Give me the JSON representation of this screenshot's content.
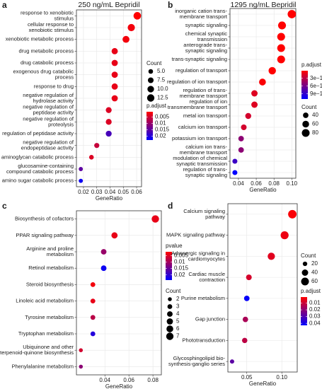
{
  "chart_data": [
    {
      "type": "dot",
      "panel": "a",
      "title": "250 ng/mL Bepridil",
      "x_label": "GeneRatio",
      "categories": [
        "response to xenobiotic\nstimulus",
        "cellular response to\nxenobiotic stimulus",
        "xenobiotic metabolic process",
        "drug metabolic process",
        "drug catabolic process",
        "exogenous drug catabolic\nprocess",
        "response to drug",
        "negative regulation of\nhydrolase activity",
        "negative regulation of\npeptidase activity",
        "negative regulation of\nproteolysis",
        "regulation of peptidase activity",
        "negative regulation of\nendopeptidase activity",
        "aminoglycan catabolic process",
        "glucosamine-containing\ncompound catabolic process",
        "amino sugar catabolic process"
      ],
      "values": [
        0.0605,
        0.056,
        0.052,
        0.0435,
        0.0435,
        0.0435,
        0.0435,
        0.0435,
        0.039,
        0.039,
        0.039,
        0.03,
        0.026,
        0.018,
        0.018
      ],
      "sizes": [
        13,
        12,
        11,
        9,
        9,
        9,
        9,
        9,
        8,
        8,
        8,
        6,
        5,
        4,
        4
      ],
      "color_values": [
        0.001,
        0.002,
        0.002,
        0.003,
        0.003,
        0.003,
        0.003,
        0.003,
        0.004,
        0.004,
        0.017,
        0.006,
        0.004,
        0.015,
        0.022
      ],
      "xlim": [
        0.0147,
        0.0637
      ],
      "xticks": [
        0.02,
        0.03,
        0.04,
        0.05,
        0.06
      ],
      "grid": true,
      "size_title": "Count",
      "size_ticks": [
        {
          "value": 5,
          "label": "5.0"
        },
        7.5,
        {
          "value": 10,
          "label": "10.0"
        },
        12.5
      ],
      "color_title": "p.adjust",
      "colors": [
        "#ff0000",
        "#0000ff"
      ],
      "clim": [
        0.001,
        0.023
      ],
      "color_ticks": [
        0.005,
        0.01,
        0.015,
        0.02
      ]
    },
    {
      "type": "dot",
      "panel": "b",
      "title": "1295 ng/mL Bepridil",
      "x_label": "GeneRatio",
      "categories": [
        "inorganic cation trans-\nmembrane transport",
        "synaptic signaling",
        "chemical synaptic\ntransmission",
        "anterograde trans-\nsynaptic signaling",
        "trans-synaptic signaling",
        "regulation of transport",
        "regulation of ion transport",
        "regulation of trans-\nmembrane transport",
        "regulation of ion\ntransmembrane transport",
        "metal ion transport",
        "calcium ion transport",
        "potassium ion transport",
        "calcium ion trans-\nmembrane transport",
        "modulation of chemical\nsynaptic transmission",
        "regulation of trans-\nsynaptic signaling"
      ],
      "values": [
        0.1,
        0.089,
        0.088,
        0.088,
        0.088,
        0.078,
        0.067,
        0.058,
        0.058,
        0.051,
        0.046,
        0.043,
        0.043,
        0.036,
        0.036
      ],
      "sizes": [
        92,
        82,
        81,
        81,
        81,
        72,
        62,
        53,
        53,
        47,
        42,
        40,
        40,
        33,
        33
      ],
      "color_values": [
        1e-14,
        1e-14,
        1e-14,
        1e-14,
        1e-14,
        1e-14,
        3e-14,
        1.5e-13,
        1.5e-13,
        2e-13,
        2e-13,
        5e-13,
        5e-13,
        8.5e-13,
        1.1e-12
      ],
      "xlim": [
        0.0305,
        0.1045
      ],
      "xticks": [
        0.04,
        0.06,
        0.08,
        {
          "value": 0.1,
          "label": "0.10"
        }
      ],
      "grid": true,
      "size_title": "Count",
      "size_ticks": [
        40,
        60,
        80
      ],
      "color_title": "p.adjust",
      "colors": [
        "#ff0000",
        "#0000ff"
      ],
      "clim": [
        1e-14,
        1.1e-12
      ],
      "color_ticks": [
        {
          "value": 3e-13,
          "label": "3e−13"
        },
        {
          "value": 6e-13,
          "label": "6e−13"
        },
        {
          "value": 9e-13,
          "label": "9e−13"
        }
      ]
    },
    {
      "type": "dot",
      "panel": "c",
      "x_label": "GeneRatio",
      "categories": [
        "Biosynthesis of cofactors",
        "PPAR signaling pathway",
        "Arginine and proline\nmetabolism",
        "Retinol metabolism",
        "Steroid biosynthesis",
        "Linoleic acid metabolism",
        "Tyrosine metabolism",
        "Tryptophan metabolism",
        "Ubiquinone and other\nterpenoid-quinone biosynthesis",
        "Phenylalanine metabolism"
      ],
      "values": [
        0.082,
        0.048,
        0.039,
        0.039,
        0.03,
        0.03,
        0.03,
        0.03,
        0.02,
        0.02
      ],
      "sizes": [
        7,
        5,
        4,
        4,
        3,
        3,
        3,
        3,
        2,
        2
      ],
      "color_values": [
        0.004,
        0.004,
        0.011,
        0.023,
        0.003,
        0.004,
        0.008,
        0.021,
        0.006,
        0.012
      ],
      "xlim": [
        0.0163,
        0.087
      ],
      "xticks": [
        0.04,
        0.06,
        0.08
      ],
      "grid": true,
      "size_title": "Count",
      "size_ticks": [
        2,
        3,
        4,
        5,
        6,
        7
      ],
      "color_title": "pvalue",
      "colors": [
        "#ff0000",
        "#0000ff"
      ],
      "clim": [
        0.002,
        0.024
      ],
      "color_ticks": [
        0.005,
        0.01,
        0.015,
        0.02
      ]
    },
    {
      "type": "dot",
      "panel": "d",
      "x_label": "GeneRatio",
      "categories": [
        "Calcium signaling\npathway",
        "MAPK signaling pathway",
        "Adrenergic signaling in\ncardiomyocytes",
        "Cardiac muscle\ncontraction",
        "Purine metabolism",
        "Gap junction",
        "Phototransduction",
        "Glycosphingolipid bio-\nsynthesis-ganglio series"
      ],
      "values": [
        0.115,
        0.104,
        0.085,
        0.053,
        0.05,
        0.048,
        0.047,
        0.029
      ],
      "sizes": [
        70,
        63,
        52,
        32,
        30,
        29,
        28,
        18
      ],
      "color_values": [
        0.002,
        0.004,
        0.006,
        0.008,
        0.042,
        0.015,
        0.012,
        0.028
      ],
      "xlim": [
        0.023,
        0.122
      ],
      "xticks": [
        0.05,
        {
          "value": 0.1,
          "label": "0.10"
        }
      ],
      "grid": true,
      "size_title": "Count",
      "size_ticks": [
        20,
        40,
        60
      ],
      "color_title": "p.adjust",
      "colors": [
        "#ff0000",
        "#0000ff"
      ],
      "clim": [
        0.001,
        0.043
      ],
      "color_ticks": [
        0.01,
        0.02,
        0.03,
        0.04
      ]
    }
  ]
}
